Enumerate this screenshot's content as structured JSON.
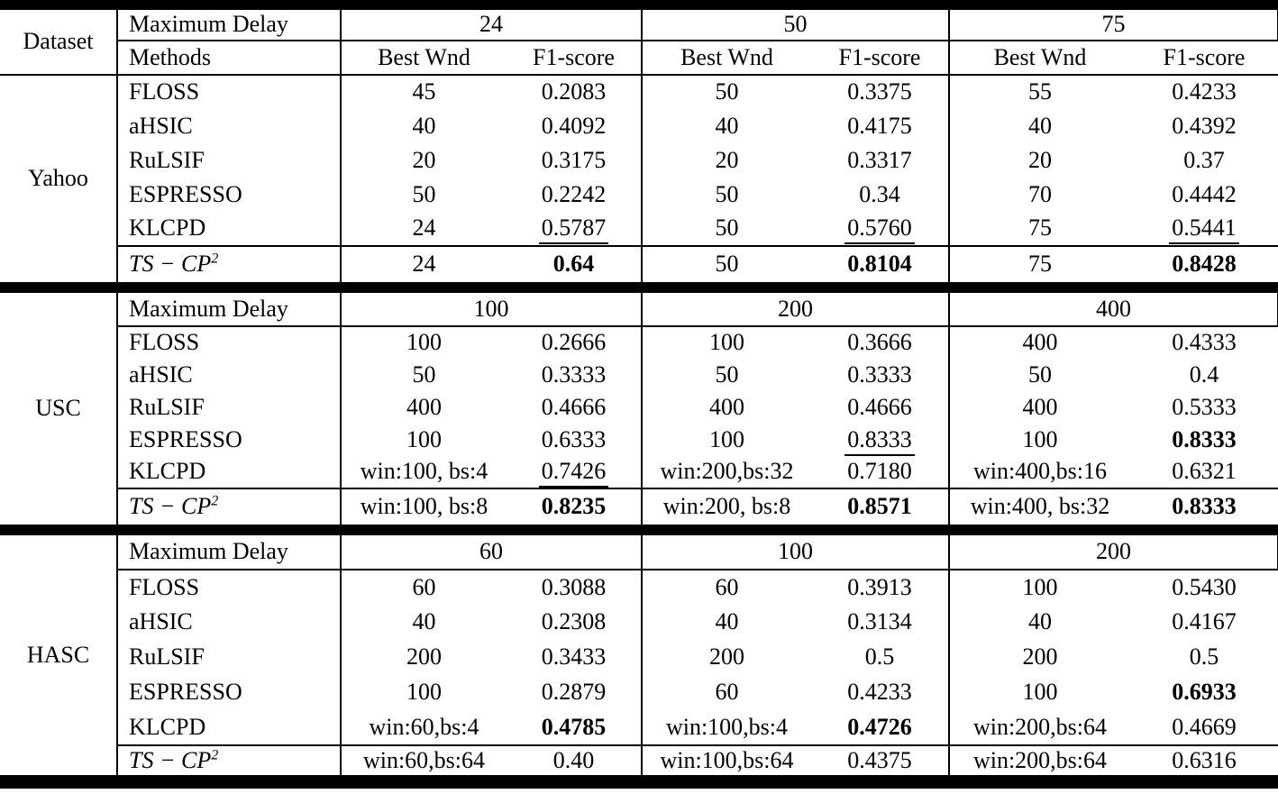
{
  "colors": {
    "text": "#000000",
    "rules": "#000000",
    "background": "#ffffff"
  },
  "table": {
    "header": {
      "dataset_label": "Dataset",
      "max_delay_label": "Maximum Delay",
      "methods_label": "Methods",
      "best_wnd_label": "Best Wnd",
      "f1_label": "F1-score"
    },
    "sections": [
      {
        "dataset": "Yahoo",
        "delays": [
          "24",
          "50",
          "75"
        ],
        "show_delay_row": false,
        "rows": [
          {
            "label": "FLOSS",
            "groups": [
              {
                "wnd": "45",
                "f1": "0.2083"
              },
              {
                "wnd": "50",
                "f1": "0.3375"
              },
              {
                "wnd": "55",
                "f1": "0.4233"
              }
            ]
          },
          {
            "label": "aHSIC",
            "groups": [
              {
                "wnd": "40",
                "f1": "0.4092"
              },
              {
                "wnd": "40",
                "f1": "0.4175"
              },
              {
                "wnd": "40",
                "f1": "0.4392"
              }
            ]
          },
          {
            "label": "RuLSIF",
            "groups": [
              {
                "wnd": "20",
                "f1": "0.3175"
              },
              {
                "wnd": "20",
                "f1": "0.3317"
              },
              {
                "wnd": "20",
                "f1": "0.37"
              }
            ]
          },
          {
            "label": "ESPRESSO",
            "groups": [
              {
                "wnd": "50",
                "f1": "0.2242"
              },
              {
                "wnd": "50",
                "f1": "0.34"
              },
              {
                "wnd": "70",
                "f1": "0.4442"
              }
            ]
          },
          {
            "label": "KLCPD",
            "groups": [
              {
                "wnd": "24",
                "f1": "0.5787",
                "f1_style": "underline"
              },
              {
                "wnd": "50",
                "f1": "0.5760",
                "f1_style": "underline"
              },
              {
                "wnd": "75",
                "f1": "0.5441",
                "f1_style": "underline"
              }
            ]
          },
          {
            "label": "TS − CP",
            "sup": "2",
            "italic": true,
            "ts": true,
            "groups": [
              {
                "wnd": "24",
                "f1": "0.64",
                "f1_style": "bold"
              },
              {
                "wnd": "50",
                "f1": "0.8104",
                "f1_style": "bold"
              },
              {
                "wnd": "75",
                "f1": "0.8428",
                "f1_style": "bold"
              }
            ]
          }
        ]
      },
      {
        "dataset": "USC",
        "delays": [
          "100",
          "200",
          "400"
        ],
        "show_delay_row": true,
        "rows": [
          {
            "label": "FLOSS",
            "groups": [
              {
                "wnd": "100",
                "f1": "0.2666"
              },
              {
                "wnd": "100",
                "f1": "0.3666"
              },
              {
                "wnd": "400",
                "f1": "0.4333"
              }
            ]
          },
          {
            "label": "aHSIC",
            "groups": [
              {
                "wnd": "50",
                "f1": "0.3333"
              },
              {
                "wnd": "50",
                "f1": "0.3333"
              },
              {
                "wnd": "50",
                "f1": "0.4"
              }
            ]
          },
          {
            "label": "RuLSIF",
            "groups": [
              {
                "wnd": "400",
                "f1": "0.4666"
              },
              {
                "wnd": "400",
                "f1": "0.4666"
              },
              {
                "wnd": "400",
                "f1": "0.5333"
              }
            ]
          },
          {
            "label": "ESPRESSO",
            "groups": [
              {
                "wnd": "100",
                "f1": "0.6333"
              },
              {
                "wnd": "100",
                "f1": "0.8333",
                "f1_style": "underline"
              },
              {
                "wnd": "100",
                "f1": "0.8333",
                "f1_style": "bold"
              }
            ]
          },
          {
            "label": "KLCPD",
            "groups": [
              {
                "wnd": "win:100, bs:4",
                "f1": "0.7426",
                "f1_style": "underline"
              },
              {
                "wnd": "win:200,bs:32",
                "f1": "0.7180"
              },
              {
                "wnd": "win:400,bs:16",
                "f1": "0.6321"
              }
            ]
          },
          {
            "label": "TS − CP",
            "sup": "2",
            "italic": true,
            "ts": true,
            "groups": [
              {
                "wnd": "win:100, bs:8",
                "f1": "0.8235",
                "f1_style": "bold"
              },
              {
                "wnd": "win:200, bs:8",
                "f1": "0.8571",
                "f1_style": "bold"
              },
              {
                "wnd": "win:400, bs:32",
                "f1": "0.8333",
                "f1_style": "bold"
              }
            ]
          }
        ]
      },
      {
        "dataset": "HASC",
        "delays": [
          "60",
          "100",
          "200"
        ],
        "show_delay_row": true,
        "rows": [
          {
            "label": "FLOSS",
            "groups": [
              {
                "wnd": "60",
                "f1": "0.3088"
              },
              {
                "wnd": "60",
                "f1": "0.3913"
              },
              {
                "wnd": "100",
                "f1": "0.5430"
              }
            ]
          },
          {
            "label": "aHSIC",
            "groups": [
              {
                "wnd": "40",
                "f1": "0.2308"
              },
              {
                "wnd": "40",
                "f1": "0.3134"
              },
              {
                "wnd": "40",
                "f1": "0.4167"
              }
            ]
          },
          {
            "label": "RuLSIF",
            "groups": [
              {
                "wnd": "200",
                "f1": "0.3433"
              },
              {
                "wnd": "200",
                "f1": "0.5"
              },
              {
                "wnd": "200",
                "f1": "0.5"
              }
            ]
          },
          {
            "label": "ESPRESSO",
            "groups": [
              {
                "wnd": "100",
                "f1": "0.2879"
              },
              {
                "wnd": "60",
                "f1": "0.4233"
              },
              {
                "wnd": "100",
                "f1": "0.6933",
                "f1_style": "bold"
              }
            ]
          },
          {
            "label": "KLCPD",
            "groups": [
              {
                "wnd": "win:60,bs:4",
                "f1": "0.4785",
                "f1_style": "bold"
              },
              {
                "wnd": "win:100,bs:4",
                "f1": "0.4726",
                "f1_style": "bold"
              },
              {
                "wnd": "win:200,bs:64",
                "f1": "0.4669"
              }
            ]
          },
          {
            "label": "TS − CP",
            "sup": "2",
            "italic": true,
            "ts": true,
            "groups": [
              {
                "wnd": "win:60,bs:64",
                "f1": "0.40",
                "f1_style": "underline"
              },
              {
                "wnd": "win:100,bs:64",
                "f1": "0.4375",
                "f1_style": "underline"
              },
              {
                "wnd": "win:200,bs:64",
                "f1": "0.6316",
                "f1_style": "underline"
              }
            ]
          }
        ]
      }
    ]
  }
}
